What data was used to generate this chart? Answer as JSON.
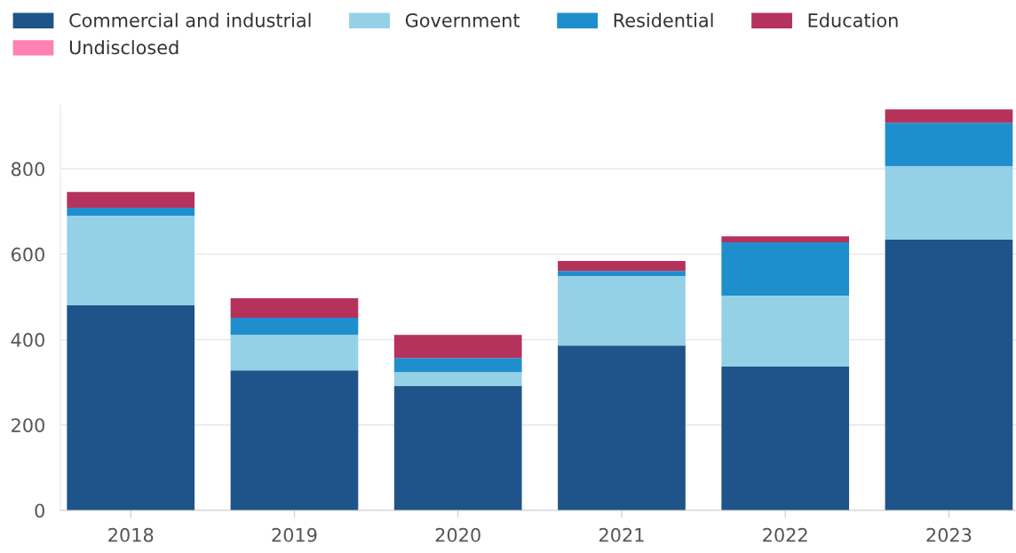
{
  "chart_data": {
    "type": "bar",
    "stacked": true,
    "categories": [
      "2018",
      "2019",
      "2020",
      "2021",
      "2022",
      "2023"
    ],
    "series": [
      {
        "name": "Commercial and industrial",
        "color": "#1f548a",
        "values": [
          480,
          328,
          291,
          386,
          337,
          634
        ]
      },
      {
        "name": "Government",
        "color": "#94d1e6",
        "values": [
          210,
          83,
          33,
          163,
          166,
          172
        ]
      },
      {
        "name": "Residential",
        "color": "#1f8ecd",
        "values": [
          19,
          40,
          33,
          12,
          125,
          102
        ]
      },
      {
        "name": "Education",
        "color": "#b5325c",
        "values": [
          37,
          46,
          54,
          23,
          14,
          31
        ]
      },
      {
        "name": "Undisclosed",
        "color": "#ff82b0",
        "values": [
          0,
          0,
          0,
          0,
          0,
          0
        ]
      }
    ],
    "ylim": [
      0,
      950
    ],
    "yticks": [
      0,
      200,
      400,
      600,
      800
    ],
    "grid": "y",
    "legend": "top"
  }
}
